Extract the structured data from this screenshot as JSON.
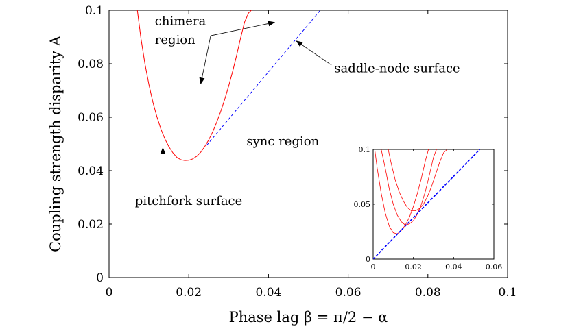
{
  "chart_data": [
    {
      "type": "line",
      "xlabel": "Phase lag β = π/2 − α",
      "ylabel": "Coupling strength disparity A",
      "xlim": [
        0,
        0.1
      ],
      "ylim": [
        0,
        0.1
      ],
      "xticks": [
        "0",
        "0.02",
        "0.04",
        "0.06",
        "0.08",
        "0.1"
      ],
      "yticks": [
        "0",
        "0.02",
        "0.04",
        "0.06",
        "0.08",
        "0.1"
      ],
      "grid": false,
      "series": [
        {
          "role": "pitchfork",
          "color": "#ff0000",
          "style": "solid",
          "x": [
            0.0071,
            0.008,
            0.009,
            0.01,
            0.011,
            0.012,
            0.013,
            0.014,
            0.015,
            0.016,
            0.017,
            0.018,
            0.019,
            0.02,
            0.021,
            0.022,
            0.023,
            0.024,
            0.025,
            0.026,
            0.027,
            0.028,
            0.029,
            0.03,
            0.031,
            0.032,
            0.033,
            0.034,
            0.035,
            0.0357
          ],
          "y": [
            0.1,
            0.0895,
            0.08,
            0.0722,
            0.0656,
            0.0602,
            0.0556,
            0.0519,
            0.049,
            0.0467,
            0.045,
            0.0441,
            0.0438,
            0.0439,
            0.0444,
            0.0454,
            0.0469,
            0.049,
            0.0515,
            0.0545,
            0.0581,
            0.0621,
            0.0666,
            0.0716,
            0.0771,
            0.0831,
            0.0896,
            0.0956,
            0.099,
            0.1
          ]
        },
        {
          "role": "saddle-node",
          "color": "#0000ff",
          "style": "dashed",
          "x": [
            0.0245,
            0.053
          ],
          "y": [
            0.0495,
            0.1
          ]
        }
      ],
      "annotations": [
        {
          "text": "chimera",
          "x": 0.0115,
          "y": 0.0945
        },
        {
          "text": "region",
          "x": 0.0115,
          "y": 0.0875
        },
        {
          "text": "saddle-node surface",
          "x": 0.0565,
          "y": 0.0768
        },
        {
          "text": "sync region",
          "x": 0.0345,
          "y": 0.0495
        },
        {
          "text": "pitchfork surface",
          "x": 0.0065,
          "y": 0.0272
        }
      ],
      "arrows": [
        {
          "from": [
            0.0255,
            0.0905
          ],
          "to": [
            0.0415,
            0.0955
          ]
        },
        {
          "from": [
            0.0255,
            0.0905
          ],
          "to": [
            0.023,
            0.0725
          ]
        },
        {
          "from": [
            0.0558,
            0.0795
          ],
          "to": [
            0.047,
            0.0885
          ]
        },
        {
          "from": [
            0.0135,
            0.03
          ],
          "to": [
            0.0135,
            0.0485
          ]
        }
      ]
    },
    {
      "type": "line",
      "inset": true,
      "xlim": [
        0,
        0.06
      ],
      "ylim": [
        0,
        0.1
      ],
      "xticks": [
        "0",
        "0.02",
        "0.04",
        "0.06"
      ],
      "yticks": [
        "0",
        "0.05",
        "0.1"
      ],
      "series": [
        {
          "role": "pitchfork-1",
          "color": "#ff0000",
          "style": "solid",
          "x": [
            0.0008,
            0.002,
            0.004,
            0.006,
            0.008,
            0.01,
            0.012,
            0.014,
            0.016,
            0.018,
            0.02,
            0.022,
            0.024,
            0.026,
            0.0275
          ],
          "y": [
            0.1,
            0.083,
            0.06,
            0.042,
            0.03,
            0.024,
            0.023,
            0.026,
            0.031,
            0.038,
            0.048,
            0.06,
            0.074,
            0.09,
            0.1
          ]
        },
        {
          "role": "pitchfork-2",
          "color": "#ff0000",
          "style": "solid",
          "x": [
            0.004,
            0.006,
            0.008,
            0.01,
            0.012,
            0.014,
            0.016,
            0.018,
            0.02,
            0.022,
            0.024,
            0.026,
            0.028,
            0.03,
            0.0315
          ],
          "y": [
            0.1,
            0.083,
            0.064,
            0.05,
            0.04,
            0.034,
            0.031,
            0.032,
            0.035,
            0.041,
            0.05,
            0.062,
            0.077,
            0.093,
            0.1
          ]
        },
        {
          "role": "pitchfork-3",
          "color": "#ff0000",
          "style": "solid",
          "x": [
            0.0075,
            0.009,
            0.011,
            0.013,
            0.015,
            0.017,
            0.019,
            0.021,
            0.023,
            0.025,
            0.027,
            0.029,
            0.031,
            0.033,
            0.035,
            0.0368
          ],
          "y": [
            0.1,
            0.087,
            0.072,
            0.061,
            0.053,
            0.047,
            0.044,
            0.044,
            0.046,
            0.05,
            0.057,
            0.066,
            0.077,
            0.088,
            0.097,
            0.1
          ]
        },
        {
          "role": "saddle-node",
          "color": "#0000ff",
          "style": "dashed",
          "x": [
            0.0,
            0.053
          ],
          "y": [
            0.0,
            0.1
          ]
        }
      ]
    }
  ]
}
